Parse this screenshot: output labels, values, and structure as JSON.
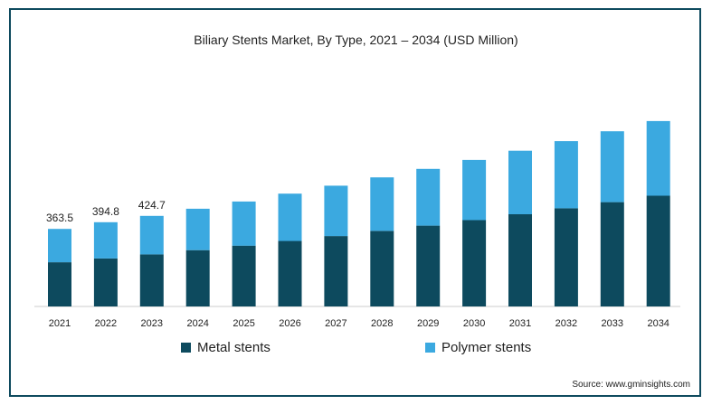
{
  "chart_data": {
    "type": "bar",
    "stacked": true,
    "title": "Biliary Stents Market, By Type, 2021 – 2034 (USD Million)",
    "categories": [
      "2021",
      "2022",
      "2023",
      "2024",
      "2025",
      "2026",
      "2027",
      "2028",
      "2029",
      "2030",
      "2031",
      "2032",
      "2033",
      "2034"
    ],
    "series": [
      {
        "name": "Metal stents",
        "color": "#0d4a5e",
        "values": [
          207,
          225,
          244,
          264,
          285,
          307,
          330,
          354,
          379,
          405,
          432,
          460,
          489,
          519
        ]
      },
      {
        "name": "Polymer stents",
        "color": "#3ba9e0",
        "values": [
          156.5,
          169.8,
          180.7,
          194,
          207,
          222,
          236,
          251,
          266,
          282,
          298,
          315,
          332,
          350
        ]
      }
    ],
    "data_labels": [
      {
        "category": "2021",
        "text": "363.5"
      },
      {
        "category": "2022",
        "text": "394.8"
      },
      {
        "category": "2023",
        "text": "424.7"
      }
    ],
    "ylim": [
      0,
      875
    ],
    "grid": false,
    "legend_position": "bottom",
    "source": "Source: www.gminsights.com"
  }
}
